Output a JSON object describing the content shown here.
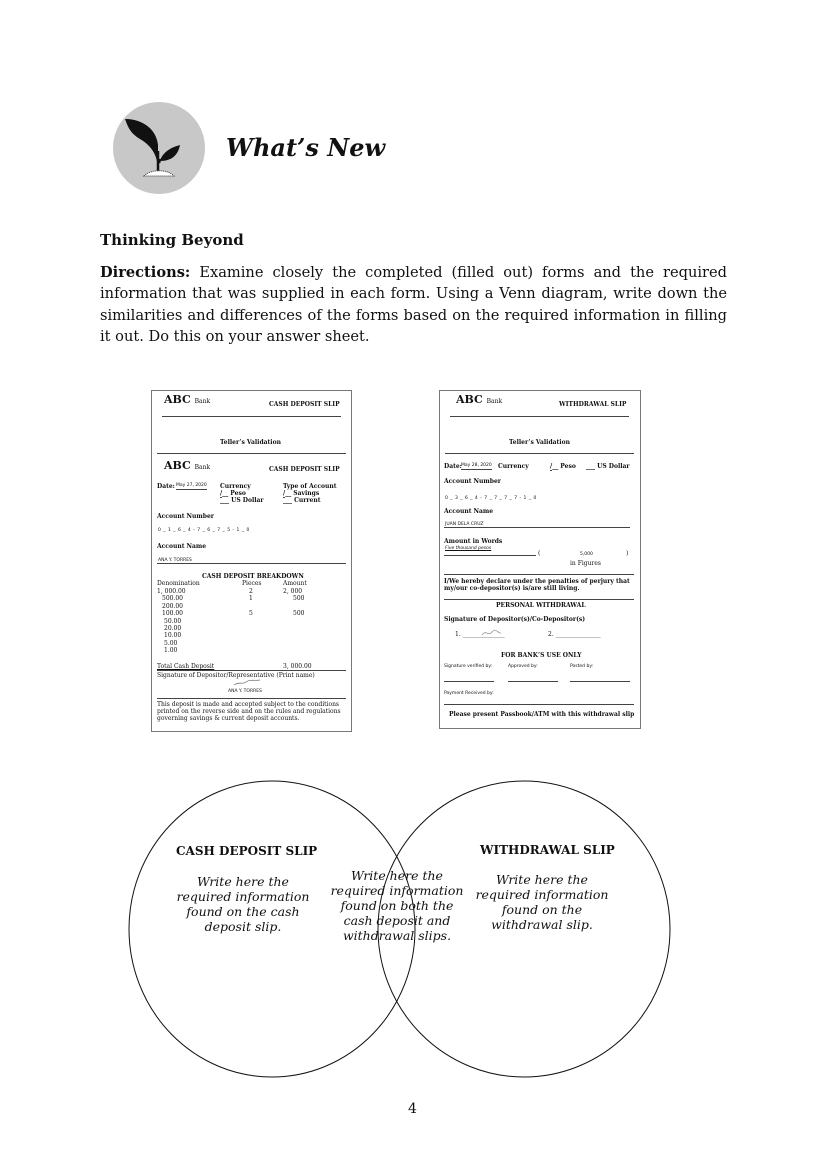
{
  "header": {
    "title": "What’s New",
    "icon": "plant-sprout-icon"
  },
  "section": {
    "title": "Thinking Beyond",
    "directions_label": "Directions:",
    "directions_text": " Examine closely the completed (filled out) forms and the required information that was supplied in each form. Using a Venn diagram, write down the similarities and differences of the forms based on the required information in filling it out. Do this on your answer sheet."
  },
  "deposit_slip": {
    "bank": "ABC",
    "bank_suffix": "Bank",
    "slip_title": "CASH DEPOSIT SLIP",
    "teller": "Teller’s Validation",
    "date_label": "Date:",
    "date": "May 27, 2020",
    "currency_label": "Currency",
    "peso": "Peso",
    "peso_mark": "/",
    "usd": "US Dollar",
    "type_label": "Type of Account",
    "savings": "Savings",
    "savings_mark": "/",
    "current": "Current",
    "acct_num_label": "Account Number",
    "acct_num": "0 _ 1 _ 6 _ 4 - 7 _ 6 _ 7 _ 5 - 1 _ 0",
    "acct_name_label": "Account Name",
    "acct_name": "ANA Y. TORRES",
    "breakdown_title": "CASH DEPOSIT BREAKDOWN",
    "columns": [
      "Denomination",
      "Pieces",
      "Amount"
    ],
    "rows": [
      [
        "1, 000.00",
        "2",
        "2, 000"
      ],
      [
        "500.00",
        "1",
        "500"
      ],
      [
        "200.00",
        "",
        ""
      ],
      [
        "100.00",
        "5",
        "500"
      ],
      [
        "50.00",
        "",
        ""
      ],
      [
        "20.00",
        "",
        ""
      ],
      [
        "10.00",
        "",
        ""
      ],
      [
        "5.00",
        "",
        ""
      ],
      [
        "1.00",
        "",
        ""
      ]
    ],
    "total_label": "Total Cash Deposit",
    "total": "3, 000.00",
    "signature_label": "Signature of Depositor/Representative (Print name)",
    "signature_name": "ANA Y. TORRES",
    "disclaimer": [
      "This deposit is made and accepted subject to the conditions",
      "printed on the reverse side and on the rules and regulations",
      "governing savings & current deposit accounts."
    ]
  },
  "withdrawal_slip": {
    "bank": "ABC",
    "bank_suffix": "Bank",
    "slip_title": "WITHDRAWAL SLIP",
    "teller": "Teller’s Validation",
    "date_label": "Date:",
    "date": "May 28, 2020",
    "currency_label": "Currency",
    "peso_mark": "/",
    "peso": "Peso",
    "usd": "US Dollar",
    "acct_num_label": "Account Number",
    "acct_num": "0 _ 3 _ 6 _ 4 - 7 _ 7 _ 7 _ 7 - 1 _ 0",
    "acct_name_label": "Account Name",
    "acct_name": "JUAN DELA CRUZ",
    "words_label": "Amount in Words",
    "words": "Five thousand pesos",
    "figures": "5,000",
    "figures_label": "in Figures",
    "declaration": [
      "I/We hereby declare under the penalties of perjury that",
      "my/our co-depositor(s) is/are still living."
    ],
    "personal": "PERSONAL WITHDRAWAL",
    "sig_label": "Signature of Depositor(s)/Co-Depositor(s)",
    "sig1": "1.",
    "sig2": "2.",
    "bank_use": "FOR BANK’S USE ONLY",
    "verified": "Signature verified by:",
    "approved": "Approved by:",
    "posted": "Posted by:",
    "payment": "Payment Received by:",
    "footer": "Please present Passbook/ATM with this withdrawal slip"
  },
  "venn": {
    "left_title": "CASH DEPOSIT SLIP",
    "left_text": [
      "Write here the",
      "required information",
      "found on the cash",
      "deposit slip."
    ],
    "middle_text": [
      "Write here the",
      "required information",
      "found on both the",
      "cash deposit and",
      "withdrawal slips."
    ],
    "right_title": "WITHDRAWAL SLIP",
    "right_text": [
      "Write here the",
      "required information",
      "found on the",
      "withdrawal slip."
    ]
  },
  "page_number": "4"
}
